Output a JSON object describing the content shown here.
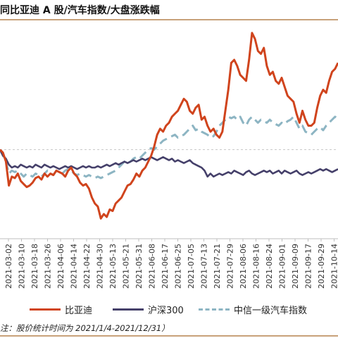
{
  "title": "同比亚迪 A 股/汽车指数/大盘涨跌幅",
  "source": "注：股价统计时间为 2021/1/4-2021/12/31）",
  "chart_data": {
    "type": "line",
    "title": "同比亚迪 A 股/汽车指数/大盘涨跌幅",
    "xlabel": "",
    "ylabel": "",
    "x_ticks": [
      "2021-03-02",
      "2021-03-10",
      "2021-03-18",
      "2021-03-26",
      "2021-04-06",
      "2021-04-14",
      "2021-04-22",
      "2021-04-30",
      "2021-05-13",
      "2021-05-21",
      "2021-05-31",
      "2021-06-08",
      "2021-06-17",
      "2021-06-25",
      "2021-07-05",
      "2021-07-13",
      "2021-07-21",
      "2021-07-29",
      "2021-08-06",
      "2021-08-16",
      "2021-08-24",
      "2021-09-01",
      "2021-09-09",
      "2021-09-17",
      "2021-09-29",
      "2021-10-14"
    ],
    "grid": false,
    "zero_line": true,
    "ylim": [
      -0.3,
      0.5
    ],
    "legend": {
      "position": "bottom"
    },
    "series": [
      {
        "name": "比亚迪",
        "color": "#d0441d",
        "style": "solid",
        "values": [
          0.0,
          -0.01,
          -0.04,
          -0.12,
          -0.09,
          -0.095,
          -0.08,
          -0.105,
          -0.115,
          -0.125,
          -0.12,
          -0.11,
          -0.095,
          -0.09,
          -0.1,
          -0.08,
          -0.09,
          -0.08,
          -0.085,
          -0.07,
          -0.075,
          -0.08,
          -0.09,
          -0.07,
          -0.06,
          -0.08,
          -0.09,
          -0.11,
          -0.12,
          -0.115,
          -0.13,
          -0.16,
          -0.18,
          -0.19,
          -0.23,
          -0.215,
          -0.225,
          -0.2,
          -0.205,
          -0.18,
          -0.17,
          -0.16,
          -0.14,
          -0.12,
          -0.115,
          -0.1,
          -0.08,
          -0.09,
          -0.07,
          -0.06,
          -0.04,
          -0.02,
          0.01,
          0.05,
          0.07,
          0.06,
          0.08,
          0.09,
          0.11,
          0.12,
          0.13,
          0.15,
          0.17,
          0.16,
          0.13,
          0.12,
          0.14,
          0.15,
          0.1,
          0.11,
          0.08,
          0.06,
          0.07,
          0.05,
          0.04,
          0.06,
          0.13,
          0.2,
          0.29,
          0.3,
          0.28,
          0.25,
          0.24,
          0.23,
          0.3,
          0.39,
          0.37,
          0.33,
          0.32,
          0.34,
          0.28,
          0.25,
          0.26,
          0.23,
          0.22,
          0.24,
          0.21,
          0.18,
          0.17,
          0.16,
          0.12,
          0.09,
          0.13,
          0.1,
          0.08,
          0.08,
          0.09,
          0.14,
          0.18,
          0.2,
          0.19,
          0.23,
          0.26,
          0.27,
          0.29
        ]
      },
      {
        "name": "沪深300",
        "color": "#45406a",
        "style": "solid",
        "values": [
          0.0,
          -0.02,
          -0.03,
          -0.05,
          -0.06,
          -0.055,
          -0.06,
          -0.05,
          -0.055,
          -0.06,
          -0.055,
          -0.06,
          -0.05,
          -0.055,
          -0.06,
          -0.05,
          -0.055,
          -0.06,
          -0.055,
          -0.06,
          -0.065,
          -0.06,
          -0.055,
          -0.06,
          -0.055,
          -0.06,
          -0.065,
          -0.06,
          -0.055,
          -0.06,
          -0.055,
          -0.06,
          -0.06,
          -0.055,
          -0.06,
          -0.055,
          -0.05,
          -0.055,
          -0.05,
          -0.045,
          -0.05,
          -0.045,
          -0.04,
          -0.045,
          -0.04,
          -0.035,
          -0.04,
          -0.035,
          -0.03,
          -0.035,
          -0.03,
          -0.025,
          -0.03,
          -0.035,
          -0.03,
          -0.025,
          -0.03,
          -0.035,
          -0.03,
          -0.04,
          -0.035,
          -0.04,
          -0.045,
          -0.04,
          -0.035,
          -0.045,
          -0.05,
          -0.055,
          -0.06,
          -0.07,
          -0.09,
          -0.08,
          -0.09,
          -0.085,
          -0.08,
          -0.085,
          -0.08,
          -0.075,
          -0.08,
          -0.07,
          -0.075,
          -0.08,
          -0.085,
          -0.075,
          -0.07,
          -0.08,
          -0.085,
          -0.08,
          -0.075,
          -0.07,
          -0.075,
          -0.07,
          -0.08,
          -0.075,
          -0.07,
          -0.08,
          -0.07,
          -0.075,
          -0.08,
          -0.075,
          -0.07,
          -0.08,
          -0.085,
          -0.08,
          -0.075,
          -0.08,
          -0.075,
          -0.07,
          -0.065,
          -0.07,
          -0.065,
          -0.07,
          -0.075,
          -0.07,
          -0.065
        ]
      },
      {
        "name": "中信一级汽车指数",
        "color": "#8db5c3",
        "style": "dashed",
        "values": [
          0.0,
          -0.02,
          -0.04,
          -0.08,
          -0.07,
          -0.075,
          -0.07,
          -0.08,
          -0.09,
          -0.08,
          -0.085,
          -0.09,
          -0.08,
          -0.085,
          -0.09,
          -0.08,
          -0.07,
          -0.08,
          -0.085,
          -0.07,
          -0.075,
          -0.08,
          -0.07,
          -0.065,
          -0.07,
          -0.08,
          -0.085,
          -0.08,
          -0.085,
          -0.09,
          -0.085,
          -0.09,
          -0.095,
          -0.09,
          -0.095,
          -0.09,
          -0.085,
          -0.08,
          -0.075,
          -0.07,
          -0.06,
          -0.05,
          -0.04,
          -0.045,
          -0.04,
          -0.03,
          -0.025,
          -0.03,
          -0.02,
          -0.01,
          0.0,
          0.005,
          0.0,
          0.01,
          0.02,
          0.03,
          0.035,
          0.04,
          0.045,
          0.05,
          0.04,
          0.045,
          0.05,
          0.06,
          0.07,
          0.08,
          0.065,
          0.07,
          0.06,
          0.055,
          0.05,
          0.04,
          0.045,
          0.06,
          0.08,
          0.09,
          0.1,
          0.11,
          0.105,
          0.11,
          0.1,
          0.11,
          0.09,
          0.08,
          0.1,
          0.11,
          0.1,
          0.09,
          0.1,
          0.095,
          0.09,
          0.1,
          0.09,
          0.085,
          0.08,
          0.09,
          0.085,
          0.095,
          0.1,
          0.11,
          0.09,
          0.07,
          0.08,
          0.06,
          0.055,
          0.05,
          0.06,
          0.07,
          0.075,
          0.065,
          0.08,
          0.09,
          0.1,
          0.11,
          0.105
        ]
      }
    ]
  }
}
